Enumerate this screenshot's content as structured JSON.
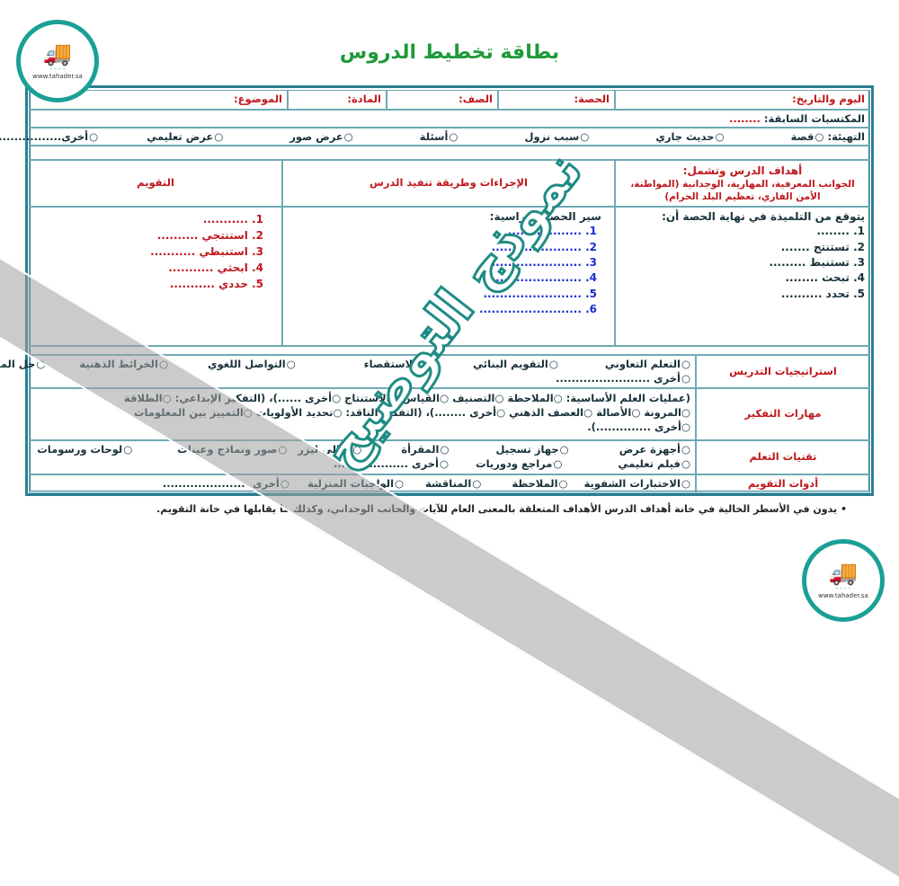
{
  "title": "بطاقة تخطيط الدروس",
  "logo": {
    "text": "تحاضير ملخصين جاهزة",
    "url": "www.tahader.sa"
  },
  "watermark": "نموذج التوضيح",
  "header_row": {
    "date": "اليوم والتاريخ:",
    "period": "الحصة:",
    "class": "الصف:",
    "subject": "المادة:",
    "topic": "الموضوع:"
  },
  "prior": {
    "label": "المكتسبات السابقة:",
    "value": "........"
  },
  "intro": {
    "label": "التهيئة:",
    "options": [
      "قصة",
      "حديث جاري",
      "سبب نزول",
      "أسئلة",
      "عرض صور",
      "عرض تعليمي",
      "أخرى...................."
    ]
  },
  "columns": {
    "goals_title": "أهداف الدرس وتشمل:",
    "goals_sub": "الجوانب المعرفية، المهارية، الوجدانية (المواطنة، الأمن الفاري، تعظيم البلد الحرام)",
    "procedures": "الإجراءات وطريقة تنفيذ الدرس",
    "evaluation": "التقويم"
  },
  "goals": {
    "intro": "يتوقع من التلميذة في نهاية الحصة أن:",
    "items": [
      "1. ........",
      "2. تستنتج .......",
      "3. تستنبط .........",
      "4. تبحث ........",
      "5. تحدد .........."
    ]
  },
  "procedures": {
    "intro": "سير الحصة الدراسية:",
    "items": [
      "1. ..................",
      "2. ......................",
      "3. ......................",
      "4. .......................",
      "5. ........................",
      "6. ........................."
    ]
  },
  "evaluation": {
    "items": [
      "1. ...........",
      "2. استنتجي ..........",
      "3. استنبطي ...........",
      "4. ابحثي ...........",
      "5. حددي ..........."
    ]
  },
  "strategies": {
    "label": "استراتيجيات التدريس",
    "options": [
      "التعلم التعاوني",
      "التقويم البنائي",
      "الاستقصاء",
      "التواصل اللغوي",
      "الخرائط الذهنية",
      "حل المشكلات",
      "أخرى ........................"
    ]
  },
  "thinking": {
    "label": "مهارات التفكير",
    "line1": "(عمليات العلم الأساسية: ○الملاحظة ○التصنيف ○القياس ○الاستنتاج ○أخرى ......)، (التفكير الإبداعي: ○الطلاقة",
    "line2": "○المرونة ○الأصالة ○العصف الذهني ○أخرى ........)، (التفكير الناقد: ○تحديد الأولويات ○التمييز بين المعلومات",
    "line3": "○أخرى ..............)."
  },
  "tech": {
    "label": "تقنيات التعلم",
    "row1": [
      "أجهزة عرض",
      "جهاز تسجيل",
      "المقرأة",
      "التالي ليزر",
      "صور ونماذج وعينات",
      "لوحات ورسومات"
    ],
    "row2": [
      "فيلم تعليمي",
      "مراجع ودوريات",
      "أخرى ..................."
    ]
  },
  "tools": {
    "label": "أدوات التقويم",
    "options": [
      "الاختبارات الشفوية",
      "الملاحظة",
      "المناقشة",
      "الواجبات المنزلية",
      "أخرى ......................"
    ]
  },
  "note": "يدون في الأسطر الخالية في خانة أهداف الدرس الأهداف المتعلقة بالمعنى العام للآيات والجانب الوجداني، وكذلك ما يقابلها في خانة التقويم."
}
